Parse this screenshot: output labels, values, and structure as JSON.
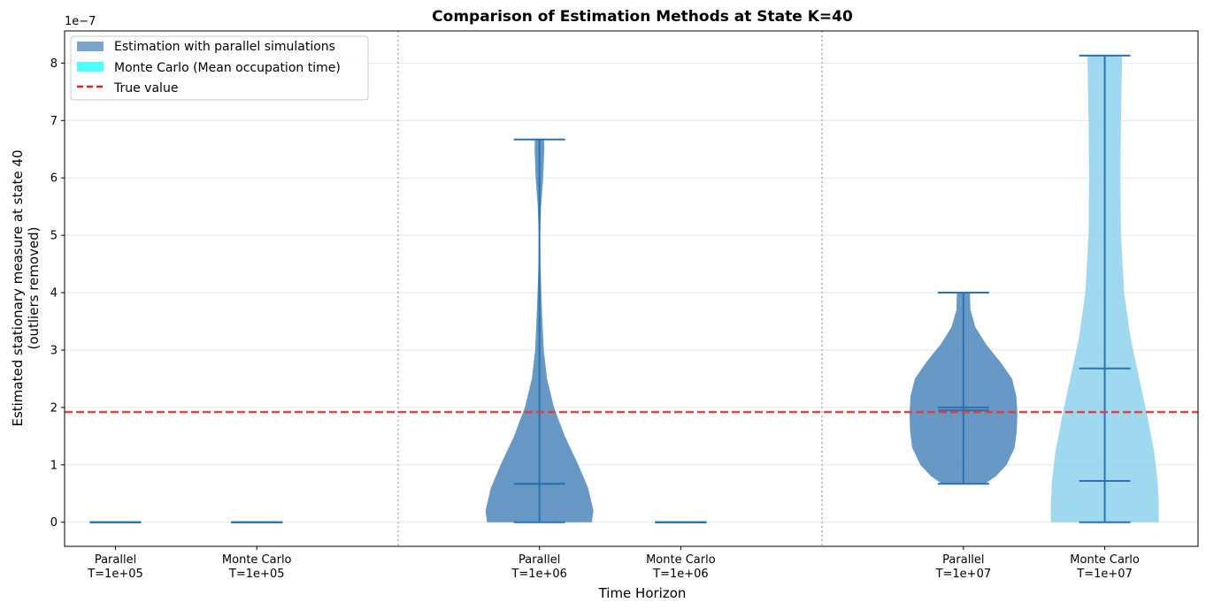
{
  "chart_data": {
    "type": "violin",
    "title": "Comparison of Estimation Methods at State K=40",
    "xlabel": "Time Horizon",
    "ylabel_line1": "Estimated stationary measure at state 40",
    "ylabel_line2": "(outliers removed)",
    "y_scale_label": "1e−7",
    "y_multiplier": 1e-07,
    "ylim": [
      -0.42,
      8.56
    ],
    "yticks": [
      0,
      1,
      2,
      3,
      4,
      5,
      6,
      7,
      8
    ],
    "ytick_labels": [
      "0",
      "1",
      "2",
      "3",
      "4",
      "5",
      "6",
      "7",
      "8"
    ],
    "grid": "y",
    "true_value": 1.92,
    "legend_position": "upper-left",
    "legend": [
      {
        "label": "Estimation with parallel simulations",
        "kind": "patch",
        "color": "#7ba5cc"
      },
      {
        "label": "Monte Carlo (Mean occupation time)",
        "kind": "patch",
        "color": "#4dffff"
      },
      {
        "label": "True value",
        "kind": "dashed-line",
        "color": "#e02020"
      }
    ],
    "colors": {
      "parallel": "#5b8fc0",
      "montecarlo": "#8fd2ec",
      "stat_lines": "#2a72b0",
      "true_line": "#e8393a",
      "separator": "#b0b0b0",
      "grid": "#e6e6e6"
    },
    "groups": [
      {
        "name": "T=1e+05",
        "violins": [
          {
            "method": "Parallel",
            "label_line1": "Parallel",
            "label_line2": "T=1e+05",
            "min": 0,
            "max": 0,
            "median": 0,
            "mean": 0,
            "shape": []
          },
          {
            "method": "Monte Carlo",
            "label_line1": "Monte Carlo",
            "label_line2": "T=1e+05",
            "min": 0,
            "max": 0,
            "median": 0,
            "mean": 0,
            "shape": []
          }
        ]
      },
      {
        "name": "T=1e+06",
        "violins": [
          {
            "method": "Parallel",
            "label_line1": "Parallel",
            "label_line2": "T=1e+06",
            "min": 0,
            "max": 6.67,
            "median": 0.67,
            "mean": 0.67,
            "shape": [
              [
                0,
                0.97
              ],
              [
                0.2,
                1
              ],
              [
                0.6,
                0.9
              ],
              [
                1.0,
                0.72
              ],
              [
                1.5,
                0.47
              ],
              [
                2.0,
                0.27
              ],
              [
                2.5,
                0.14
              ],
              [
                3.0,
                0.08
              ],
              [
                3.5,
                0.055
              ],
              [
                4.0,
                0.035
              ],
              [
                4.5,
                0.018
              ],
              [
                5.0,
                0.012
              ],
              [
                5.5,
                0.03
              ],
              [
                6.0,
                0.07
              ],
              [
                6.5,
                0.09
              ],
              [
                6.67,
                0.085
              ]
            ]
          },
          {
            "method": "Monte Carlo",
            "label_line1": "Monte Carlo",
            "label_line2": "T=1e+06",
            "min": 0,
            "max": 0,
            "median": 0,
            "mean": 0,
            "shape": []
          }
        ]
      },
      {
        "name": "T=1e+07",
        "violins": [
          {
            "method": "Parallel",
            "label_line1": "Parallel",
            "label_line2": "T=1e+07",
            "min": 0.67,
            "max": 4.0,
            "median": 1.95,
            "mean": 2.0,
            "shape": [
              [
                0.67,
                0.4
              ],
              [
                0.8,
                0.6
              ],
              [
                1.0,
                0.8
              ],
              [
                1.3,
                0.95
              ],
              [
                1.6,
                0.99
              ],
              [
                1.9,
                1.0
              ],
              [
                2.2,
                0.98
              ],
              [
                2.5,
                0.9
              ],
              [
                2.8,
                0.68
              ],
              [
                3.1,
                0.42
              ],
              [
                3.4,
                0.22
              ],
              [
                3.7,
                0.13
              ],
              [
                4.0,
                0.12
              ]
            ]
          },
          {
            "method": "Monte Carlo",
            "label_line1": "Monte Carlo",
            "label_line2": "T=1e+07",
            "min": 0,
            "max": 8.13,
            "median": 0.72,
            "mean": 2.68,
            "shape": [
              [
                0,
                1.0
              ],
              [
                0.3,
                1.0
              ],
              [
                0.7,
                0.98
              ],
              [
                1.2,
                0.92
              ],
              [
                1.8,
                0.8
              ],
              [
                2.5,
                0.64
              ],
              [
                3.2,
                0.48
              ],
              [
                4.0,
                0.36
              ],
              [
                5.0,
                0.3
              ],
              [
                6.0,
                0.29
              ],
              [
                7.0,
                0.3
              ],
              [
                8.0,
                0.32
              ],
              [
                8.13,
                0.32
              ]
            ]
          }
        ]
      }
    ]
  }
}
